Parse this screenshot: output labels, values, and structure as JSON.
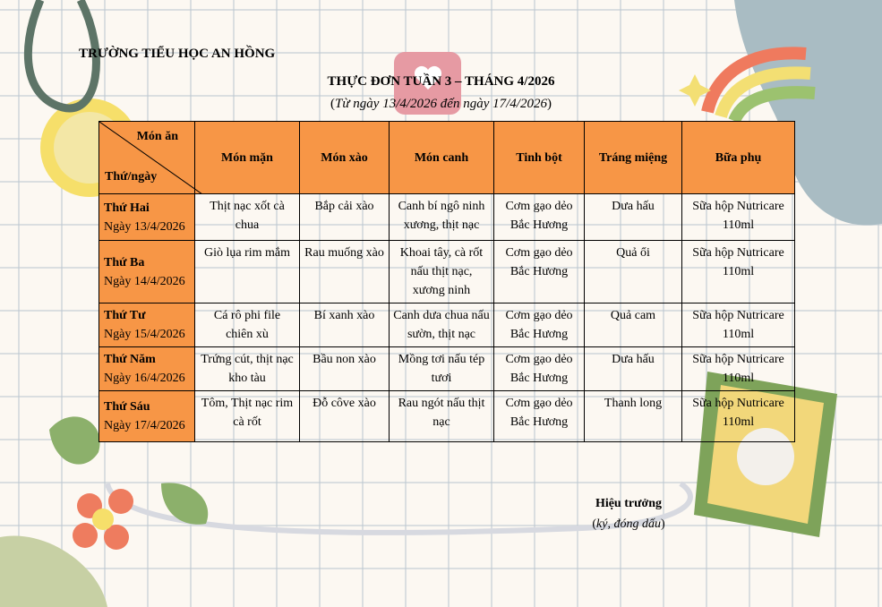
{
  "school": "TRƯỜNG TIỂU HỌC AN HỒNG",
  "title": "THỰC ĐƠN TUẦN 3 – THÁNG 4/2026",
  "subtitle_open": "(",
  "subtitle": "Từ ngày 13/4/2026 đến ngày 17/4/2026",
  "subtitle_close": ")",
  "table": {
    "corner_top": "Món ăn",
    "corner_bottom": "Thứ/ngày",
    "headers": [
      "Món mặn",
      "Món xào",
      "Món canh",
      "Tinh bột",
      "Tráng miệng",
      "Bữa phụ"
    ],
    "rows": [
      {
        "day": "Thứ Hai",
        "date": "Ngày 13/4/2026",
        "cells": [
          "Thịt nạc xốt cà chua",
          "Bắp cải xào",
          "Canh bí ngô ninh xương, thịt nạc",
          "Cơm gạo dẻo Bắc Hương",
          "Dưa hấu",
          "Sữa hộp Nutricare 110ml"
        ]
      },
      {
        "day": "Thứ Ba",
        "date": "Ngày 14/4/2026",
        "cells": [
          "Giò lụa rim mắm",
          "Rau muống xào",
          "Khoai tây, cà rốt nấu thịt nạc, xương ninh",
          "Cơm gạo dẻo Bắc Hương",
          "Quả ổi",
          "Sữa hộp Nutricare 110ml"
        ]
      },
      {
        "day": "Thứ Tư",
        "date": "Ngày 15/4/2026",
        "cells": [
          "Cá rô phi file chiên xù",
          "Bí xanh xào",
          "Canh dưa chua nấu sườn, thịt nạc",
          "Cơm gạo dẻo Bắc Hương",
          "Quả cam",
          "Sữa hộp Nutricare 110ml"
        ]
      },
      {
        "day": "Thứ Năm",
        "date": "Ngày 16/4/2026",
        "cells": [
          "Trứng cút, thịt nạc kho tàu",
          "Bầu non xào",
          "Mồng tơi nấu tép tươi",
          "Cơm gạo dẻo Bắc Hương",
          "Dưa hấu",
          "Sữa hộp Nutricare 110ml"
        ]
      },
      {
        "day": "Thứ Sáu",
        "date": "Ngày 17/4/2026",
        "cells": [
          "Tôm, Thịt nạc rim cà rốt",
          "Đỗ côve xào",
          "Rau ngót nấu thịt nạc",
          "Cơm gạo dẻo Bắc Hương",
          "Thanh long",
          "Sữa hộp Nutricare 110ml"
        ]
      }
    ]
  },
  "signature": {
    "title": "Hiệu trưởng",
    "note": "ký, đóng dấu"
  }
}
